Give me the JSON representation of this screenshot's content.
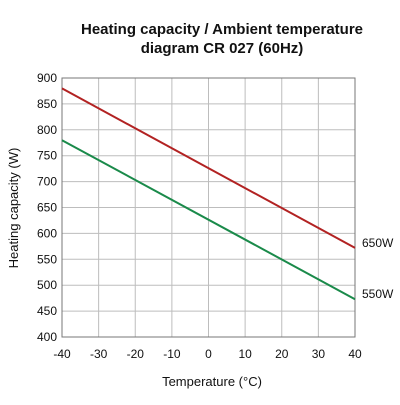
{
  "chart_data": {
    "type": "line",
    "title_line1": "Heating capacity / Ambient temperature",
    "title_line2": "diagram CR 027 (60Hz)",
    "xlabel": "Temperature (°C)",
    "ylabel": "Heating capacity (W)",
    "xlim": [
      -40,
      40
    ],
    "ylim": [
      400,
      900
    ],
    "x_ticks": [
      -40,
      -30,
      -20,
      -10,
      0,
      10,
      20,
      30,
      40
    ],
    "y_ticks": [
      400,
      450,
      500,
      550,
      600,
      650,
      700,
      750,
      800,
      850,
      900
    ],
    "grid": true,
    "series": [
      {
        "name": "650W",
        "color": "#b22222",
        "x": [
          -40,
          40
        ],
        "y": [
          880,
          572
        ]
      },
      {
        "name": "550W",
        "color": "#1a8a4a",
        "x": [
          -40,
          40
        ],
        "y": [
          780,
          473
        ]
      }
    ]
  }
}
